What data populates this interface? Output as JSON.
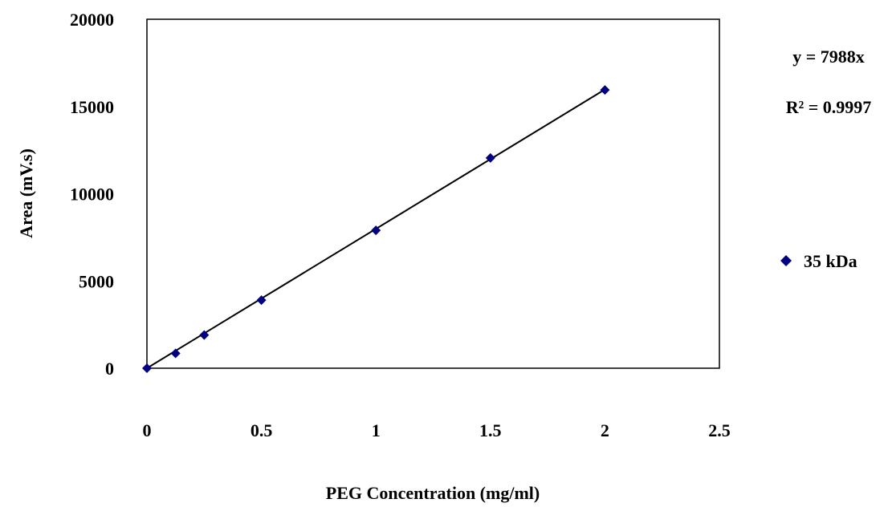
{
  "chart_data": {
    "type": "scatter",
    "title": "",
    "xlabel": "PEG Concentration (mg/ml)",
    "ylabel": "Area  (mV.s)",
    "xlim": [
      0,
      2.5
    ],
    "ylim": [
      0,
      20000
    ],
    "x_ticks": [
      0,
      0.5,
      1,
      1.5,
      2,
      2.5
    ],
    "x_tick_labels": [
      "0",
      "0.5",
      "1",
      "1.5",
      "2",
      "2.5"
    ],
    "y_ticks": [
      0,
      5000,
      10000,
      15000,
      20000
    ],
    "y_tick_labels": [
      "0",
      "5000",
      "10000",
      "15000",
      "20000"
    ],
    "grid": false,
    "legend_position": "right",
    "series": [
      {
        "name": "35 kDa",
        "color": "#000080",
        "marker": "diamond",
        "x": [
          0,
          0.125,
          0.25,
          0.5,
          1,
          1.5,
          2
        ],
        "y": [
          0,
          850,
          1900,
          3900,
          7900,
          12050,
          15950
        ]
      }
    ],
    "trendline": {
      "slope": 7988,
      "intercept": 0,
      "x_range": [
        0,
        2
      ],
      "color": "#000000"
    },
    "annotations": {
      "equation": "y = 7988x",
      "r_squared": "R² = 0.9997"
    }
  }
}
